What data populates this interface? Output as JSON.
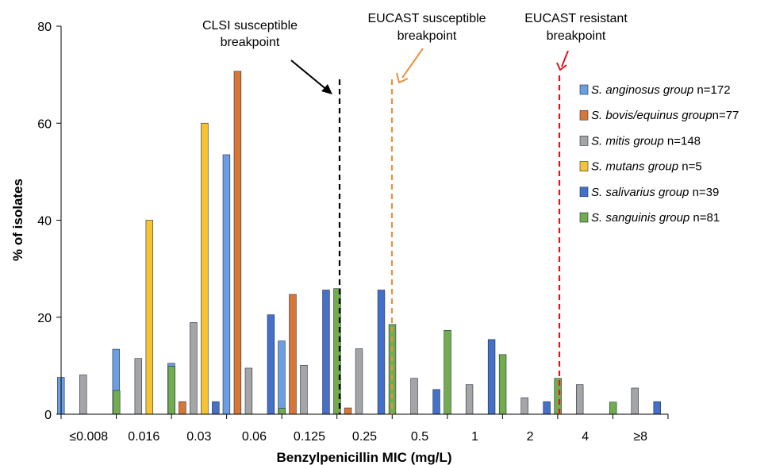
{
  "chart_data": {
    "type": "bar",
    "xlabel": "Benzylpenicillin MIC (mg/L)",
    "ylabel": "% of isolates",
    "ylim": [
      0,
      80
    ],
    "yticks": [
      "0",
      "20",
      "40",
      "60",
      "80"
    ],
    "categories": [
      "≤0.008",
      "0.016",
      "0.03",
      "0.06",
      "0.125",
      "0.25",
      "0.5",
      "1",
      "2",
      "4",
      "≥8"
    ],
    "series": [
      {
        "name": "S. anginosus group",
        "suffix": " n=172",
        "color": "#6d9ee1",
        "values": [
          7.6,
          13.4,
          10.5,
          53.5,
          15.1,
          0,
          0,
          0,
          0,
          0,
          0
        ]
      },
      {
        "name": "S. bovis/equinus group",
        "suffix": "n=77",
        "color": "#d87735",
        "values": [
          0,
          0,
          2.6,
          70.7,
          24.7,
          1.3,
          0,
          0,
          0,
          0,
          0
        ]
      },
      {
        "name": "S. mitis group",
        "suffix": " n=148",
        "color": "#a5a5a5",
        "values": [
          8.1,
          11.5,
          18.9,
          9.5,
          10.1,
          13.5,
          7.4,
          6.1,
          3.4,
          6.1,
          5.4
        ]
      },
      {
        "name": "S. mutans group",
        "suffix": " n=5",
        "color": "#f7c431",
        "values": [
          0,
          40.0,
          60.0,
          0,
          0,
          0,
          0,
          0,
          0,
          0,
          0
        ]
      },
      {
        "name": "S. salivarius group",
        "suffix": " n=39",
        "color": "#4470c7",
        "values": [
          0,
          0,
          2.6,
          20.5,
          25.6,
          25.6,
          5.1,
          15.4,
          2.6,
          0,
          2.6
        ]
      },
      {
        "name": "S. sanguinis group",
        "suffix": " n=81",
        "color": "#72ac4c",
        "values": [
          4.9,
          9.9,
          0,
          1.2,
          25.9,
          18.5,
          17.3,
          12.3,
          7.4,
          2.5,
          0
        ]
      }
    ],
    "breakpoints": [
      {
        "label_line1": "CLSI susceptible",
        "label_line2": "breakpoint",
        "color": "#000000"
      },
      {
        "label_line1": "EUCAST susceptible",
        "label_line2": "breakpoint",
        "color": "#e8913e"
      },
      {
        "label_line1": "EUCAST resistant",
        "label_line2": "breakpoint",
        "color": "#e0151b"
      }
    ],
    "legend_position": "right",
    "grid": false
  }
}
